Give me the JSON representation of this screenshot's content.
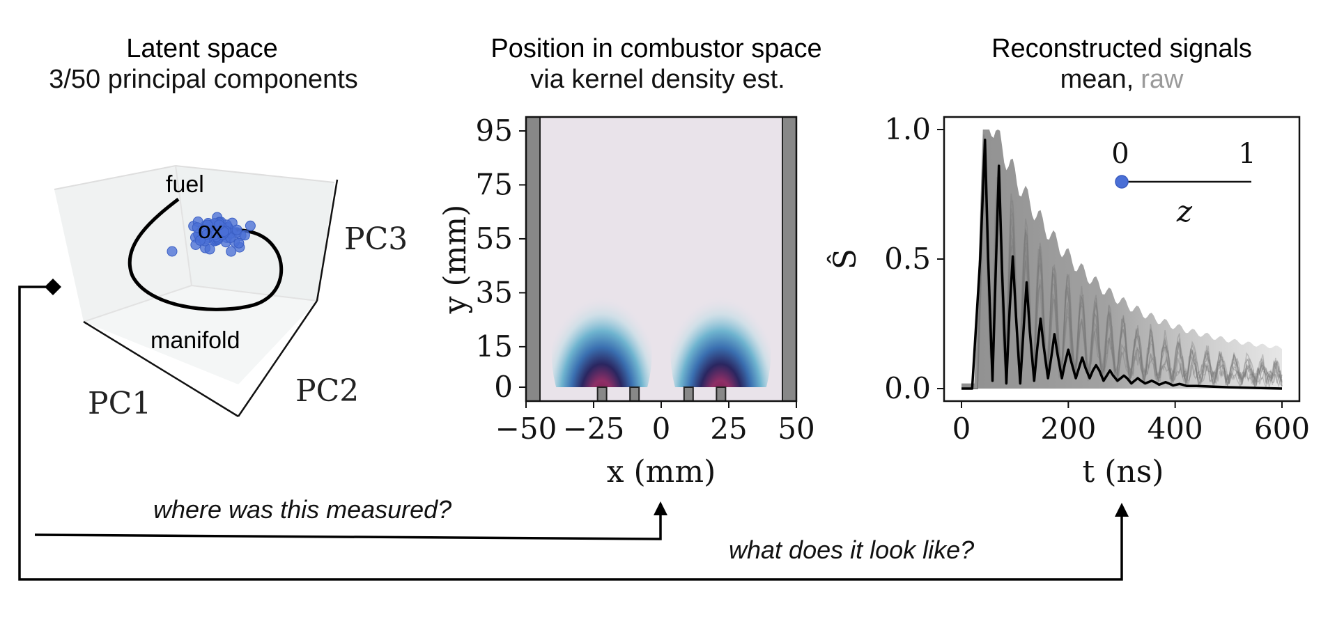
{
  "panels": {
    "latent": {
      "title": "Latent space",
      "subtitle": "3/50 principal components",
      "label_fuel": "fuel",
      "label_ox": "ox",
      "label_manifold": "manifold",
      "axis_pc1": "PC1",
      "axis_pc2": "PC2",
      "axis_pc3": "PC3"
    },
    "position": {
      "title": "Position in combustor space",
      "subtitle": "via kernel density est."
    },
    "signals": {
      "title": "Reconstructed signals",
      "subtitle_mean": "mean,",
      "subtitle_raw": "raw",
      "legend_min": "0",
      "legend_max": "1",
      "legend_var": "z"
    }
  },
  "annotations": {
    "where": "where was this measured?",
    "what": "what does it look like?"
  },
  "colors": {
    "points": "#4a6fd6",
    "raw_signal": "#8a8a8a",
    "mean_signal": "#000000",
    "density_high": "#8b2252",
    "density_low": "#e9e3ea"
  },
  "chart_data": [
    {
      "type": "heatmap",
      "xlabel": "x (mm)",
      "ylabel": "y (mm)",
      "xlim": [
        -50,
        50
      ],
      "ylim": [
        0,
        95
      ],
      "xticks": [
        "−50",
        "−25",
        "0",
        "25",
        "50"
      ],
      "yticks": [
        "0",
        "15",
        "35",
        "55",
        "75",
        "95"
      ],
      "density_peaks_x": [
        -22,
        22
      ]
    },
    {
      "type": "line",
      "xlabel": "t (ns)",
      "ylabel": "Ŝ",
      "xlim": [
        0,
        600
      ],
      "ylim": [
        0,
        1
      ],
      "xticks": [
        "0",
        "200",
        "400",
        "600"
      ],
      "yticks": [
        "0.0",
        "0.5",
        "1.0"
      ],
      "series": [
        {
          "name": "mean",
          "x": [
            0,
            20,
            35,
            44,
            50,
            58,
            64,
            70,
            76,
            84,
            90,
            96,
            102,
            110,
            116,
            122,
            128,
            136,
            142,
            148,
            154,
            162,
            168,
            174,
            180,
            188,
            194,
            200,
            206,
            214,
            220,
            226,
            232,
            240,
            246,
            252,
            258,
            266,
            272,
            278,
            284,
            292,
            298,
            304,
            310,
            318,
            324,
            330,
            336,
            344,
            350,
            356,
            362,
            370,
            376,
            382,
            388,
            396,
            402,
            408,
            414,
            422,
            440,
            500,
            600
          ],
          "y": [
            0.0,
            0.0,
            0.5,
            0.96,
            0.5,
            0.03,
            0.45,
            0.86,
            0.45,
            0.02,
            0.3,
            0.51,
            0.28,
            0.02,
            0.22,
            0.41,
            0.22,
            0.03,
            0.16,
            0.27,
            0.16,
            0.04,
            0.12,
            0.21,
            0.13,
            0.04,
            0.1,
            0.15,
            0.1,
            0.04,
            0.08,
            0.12,
            0.08,
            0.04,
            0.07,
            0.09,
            0.07,
            0.03,
            0.05,
            0.07,
            0.05,
            0.03,
            0.04,
            0.05,
            0.04,
            0.02,
            0.03,
            0.04,
            0.03,
            0.02,
            0.025,
            0.03,
            0.025,
            0.015,
            0.02,
            0.025,
            0.02,
            0.012,
            0.015,
            0.018,
            0.015,
            0.01,
            0.01,
            0.005,
            0.0
          ]
        }
      ]
    }
  ]
}
